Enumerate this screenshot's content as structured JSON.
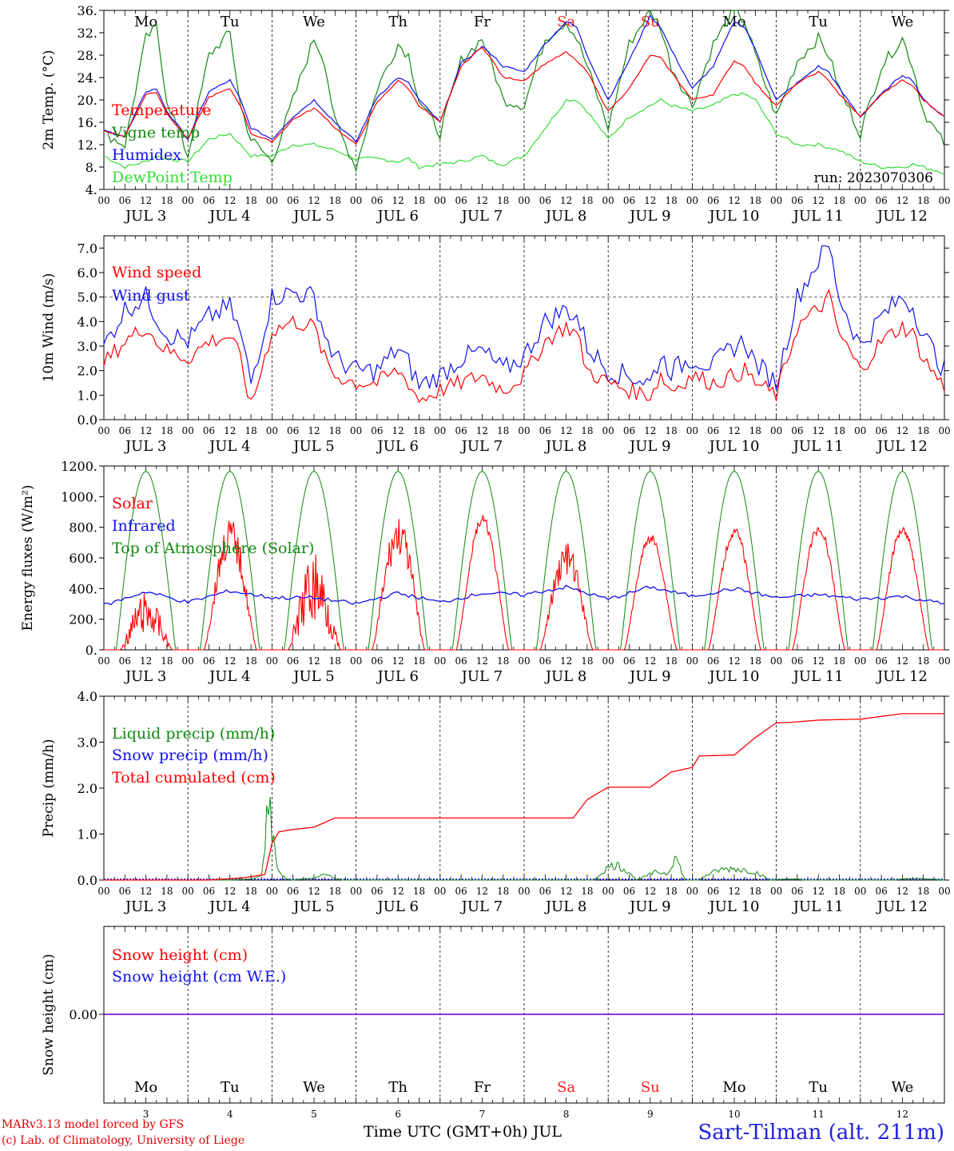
{
  "colors": {
    "red": "#ff0000",
    "blue": "#1010ee",
    "green": "#118811",
    "lightgreen": "#33dd33",
    "weekend": "#ff2020",
    "purple": "#7f1fbf"
  },
  "days": [
    "Mo",
    "Tu",
    "We",
    "Th",
    "Fr",
    "Sa",
    "Su",
    "Mo",
    "Tu",
    "We"
  ],
  "weekend_flags": [
    false,
    false,
    false,
    false,
    false,
    true,
    true,
    false,
    false,
    false
  ],
  "hour_ticks": [
    "00",
    "06",
    "12",
    "18"
  ],
  "date_labels": [
    "JUL  3",
    "JUL  4",
    "JUL  5",
    "JUL  6",
    "JUL  7",
    "JUL  8",
    "JUL  9",
    "JUL 10",
    "JUL 11",
    "JUL 12"
  ],
  "day_numbers": [
    "3",
    "4",
    "5",
    "6",
    "7",
    "8",
    "9",
    "10",
    "11",
    "12"
  ],
  "footer": {
    "model_line": "MARv3.13 model forced by GFS",
    "copyright": "(c) Lab. of Climatology, University of Liege",
    "xlabel": "Time UTC (GMT+0h) JUL",
    "station": "Sart-Tilman (alt. 211m)"
  },
  "chart_data": [
    {
      "type": "line",
      "ylabel": "2m Temp. (°C)",
      "ylim": [
        4,
        36
      ],
      "yticks": [
        "4.",
        "8.",
        "12.",
        "16.",
        "20.",
        "24.",
        "28.",
        "32.",
        "36."
      ],
      "annotation": "run: 2023070306",
      "legend": [
        "Temperature",
        "Vigne temp",
        "Humidex",
        "DewPoint Temp"
      ],
      "x_hours": [
        0,
        6,
        12,
        15,
        18,
        24,
        30,
        36,
        39,
        42,
        48,
        54,
        60,
        63,
        66,
        72,
        78,
        84,
        87,
        90,
        96,
        102,
        108,
        111,
        114,
        120,
        126,
        132,
        135,
        138,
        144,
        150,
        156,
        159,
        162,
        168,
        174,
        180,
        183,
        186,
        192,
        198,
        204,
        207,
        210,
        216,
        222,
        228,
        231,
        234,
        240
      ],
      "series": [
        {
          "name": "Temperature",
          "values": [
            14.5,
            13.5,
            21,
            21.5,
            17.5,
            13,
            20.5,
            22,
            19,
            14,
            12.5,
            16.5,
            18.5,
            17,
            15,
            12,
            19.5,
            23.5,
            22,
            19,
            16,
            26,
            29.5,
            27,
            24,
            23.5,
            26.5,
            28.5,
            27,
            25,
            18,
            22,
            28,
            27.5,
            25,
            20,
            21,
            27,
            26,
            23,
            19,
            23,
            25,
            23.5,
            21,
            17,
            21,
            23.5,
            22.5,
            20,
            17
          ]
        },
        {
          "name": "Vigne temp",
          "values": [
            14,
            12,
            31,
            33,
            20,
            10,
            28,
            32,
            19,
            13,
            9,
            20,
            31,
            27,
            16,
            8,
            22,
            30,
            28,
            20,
            14,
            27,
            31,
            26,
            20,
            19,
            31,
            34,
            31,
            26,
            15,
            30,
            36,
            33,
            26,
            19,
            30,
            36,
            34,
            28,
            17,
            27,
            31,
            28,
            22,
            14,
            26,
            31,
            26,
            18,
            12
          ]
        },
        {
          "name": "Humidex",
          "values": [
            14.5,
            13.5,
            21.5,
            22,
            18,
            13,
            21.5,
            23.5,
            20,
            15,
            13,
            17,
            20,
            18,
            16,
            12.5,
            20.5,
            24,
            23,
            20,
            16,
            26.5,
            29.5,
            28,
            26,
            25,
            30,
            34,
            33,
            28,
            20,
            27,
            35,
            33,
            29,
            22,
            26,
            34,
            33,
            29,
            20,
            23,
            26,
            25,
            22,
            17,
            21,
            24.5,
            23.5,
            20,
            17
          ]
        },
        {
          "name": "DewPoint Temp",
          "values": [
            10,
            8,
            9,
            10,
            9.5,
            9,
            13,
            14,
            12,
            10,
            10,
            12,
            12,
            11.5,
            11,
            9.5,
            9.5,
            9,
            9.5,
            8,
            8.5,
            9,
            10,
            9,
            8.5,
            10,
            15,
            20,
            20,
            18,
            13,
            17,
            19,
            20,
            19,
            18,
            19,
            21,
            21,
            20,
            14,
            12,
            12,
            11.5,
            11,
            9,
            8,
            8,
            8.5,
            8,
            7
          ]
        }
      ]
    },
    {
      "type": "line",
      "ylabel": "10m Wind (m/s)",
      "ylim": [
        0,
        7.5
      ],
      "yticks": [
        "0.0",
        "1.0",
        "2.0",
        "3.0",
        "4.0",
        "5.0",
        "6.0",
        "7.0"
      ],
      "reference_line": 5.0,
      "legend": [
        "Wind speed",
        "Wind gust"
      ],
      "x_hours": [
        0,
        6,
        12,
        15,
        18,
        24,
        30,
        36,
        39,
        42,
        48,
        54,
        60,
        63,
        66,
        72,
        78,
        84,
        87,
        90,
        96,
        102,
        108,
        111,
        114,
        120,
        126,
        132,
        135,
        138,
        144,
        150,
        156,
        159,
        162,
        168,
        174,
        180,
        183,
        186,
        192,
        198,
        204,
        207,
        210,
        216,
        222,
        228,
        231,
        234,
        240
      ],
      "series": [
        {
          "name": "Wind speed",
          "values": [
            2.3,
            3.2,
            3.8,
            3.2,
            2.8,
            2.5,
            3.2,
            3.4,
            2.5,
            0.5,
            3.6,
            4.0,
            3.8,
            2.5,
            1.8,
            1.5,
            1.5,
            2.0,
            1.5,
            0.8,
            1.2,
            1.5,
            1.8,
            1.5,
            1.2,
            1.8,
            3.2,
            3.8,
            3.5,
            2.0,
            1.5,
            1.2,
            1.0,
            1.8,
            1.2,
            1.8,
            1.5,
            1.8,
            2.0,
            1.5,
            1.0,
            3.8,
            4.5,
            5.0,
            3.5,
            2.0,
            3.2,
            3.8,
            3.5,
            2.5,
            1.3
          ]
        },
        {
          "name": "Wind gust",
          "values": [
            3.0,
            4.5,
            5.0,
            4.2,
            3.5,
            3.2,
            4.2,
            4.6,
            3.5,
            1.5,
            5.0,
            5.2,
            5.0,
            3.5,
            2.5,
            2.0,
            2.0,
            2.9,
            2.3,
            1.4,
            1.8,
            2.5,
            2.8,
            2.4,
            2.0,
            2.6,
            4.0,
            4.5,
            4.2,
            3.0,
            2.0,
            1.8,
            1.5,
            2.6,
            2.0,
            2.5,
            2.2,
            3.0,
            3.2,
            2.3,
            1.5,
            5.0,
            6.5,
            7.1,
            5.0,
            3.0,
            4.2,
            5.0,
            4.6,
            3.5,
            2.0
          ]
        }
      ]
    },
    {
      "type": "line",
      "ylabel": "Energy fluxes (W/m²)",
      "ylim": [
        0,
        1200
      ],
      "yticks": [
        "0.",
        "200.",
        "400.",
        "600.",
        "800.",
        "1000.",
        "1200."
      ],
      "legend": [
        "Solar",
        "Infrared",
        "Top of Atmosphere (Solar)"
      ],
      "toa_peak": 1165,
      "solar_day_peaks": [
        380,
        870,
        650,
        880,
        880,
        700,
        760,
        800,
        820,
        820
      ],
      "infrared": {
        "x_hours": [
          0,
          12,
          24,
          36,
          48,
          60,
          72,
          84,
          96,
          108,
          120,
          132,
          144,
          156,
          168,
          180,
          192,
          204,
          216,
          228,
          240
        ],
        "values": [
          290,
          380,
          310,
          385,
          340,
          340,
          300,
          370,
          310,
          370,
          360,
          410,
          330,
          410,
          350,
          400,
          340,
          360,
          330,
          350,
          300
        ]
      }
    },
    {
      "type": "area",
      "ylabel": "Precip (mm/h)",
      "ylim": [
        0,
        4
      ],
      "yticks": [
        "0.0",
        "1.0",
        "2.0",
        "3.0",
        "4.0"
      ],
      "legend": [
        "Liquid precip (mm/h)",
        "Snow precip (mm/h)",
        "Total cumulated (cm)"
      ],
      "liquid": {
        "x_hours": [
          0,
          36,
          42,
          45,
          46,
          47,
          48,
          49,
          50,
          52,
          54,
          60,
          62,
          64,
          66,
          68,
          140,
          143,
          146,
          150,
          152,
          155,
          158,
          161,
          163,
          166,
          170,
          172,
          176,
          180,
          186,
          190,
          195,
          197,
          200,
          226,
          230,
          234,
          240
        ],
        "values": [
          0,
          0,
          0.02,
          0.1,
          1.0,
          2.0,
          1.2,
          0.6,
          0.2,
          0.03,
          0,
          0.05,
          0.12,
          0.1,
          0.05,
          0,
          0,
          0.25,
          0.38,
          0.2,
          0,
          0.1,
          0.2,
          0.15,
          0.6,
          0,
          0,
          0.12,
          0.25,
          0.28,
          0.2,
          0,
          0.02,
          0.03,
          0,
          0,
          0.04,
          0.03,
          0
        ]
      },
      "cumulated": {
        "x_hours": [
          0,
          30,
          40,
          46,
          48,
          50,
          54,
          60,
          66,
          72,
          96,
          120,
          134,
          138,
          144,
          156,
          162,
          168,
          170,
          180,
          186,
          192,
          196,
          204,
          216,
          228,
          240
        ],
        "values": [
          0,
          0,
          0.05,
          0.12,
          0.8,
          1.05,
          1.1,
          1.15,
          1.35,
          1.35,
          1.35,
          1.35,
          1.35,
          1.75,
          2.02,
          2.02,
          2.35,
          2.45,
          2.7,
          2.72,
          3.1,
          3.42,
          3.43,
          3.48,
          3.5,
          3.62,
          3.62
        ]
      }
    },
    {
      "type": "line",
      "ylabel": "Snow height (cm)",
      "ytick_label": "0.00",
      "legend": [
        "Snow height (cm)",
        "Snow height (cm W.E.)"
      ],
      "series": [
        {
          "name": "Snow height (cm)",
          "values": [
            0,
            0
          ]
        },
        {
          "name": "Snow height (cm W.E.)",
          "values": [
            0,
            0
          ]
        }
      ]
    }
  ]
}
